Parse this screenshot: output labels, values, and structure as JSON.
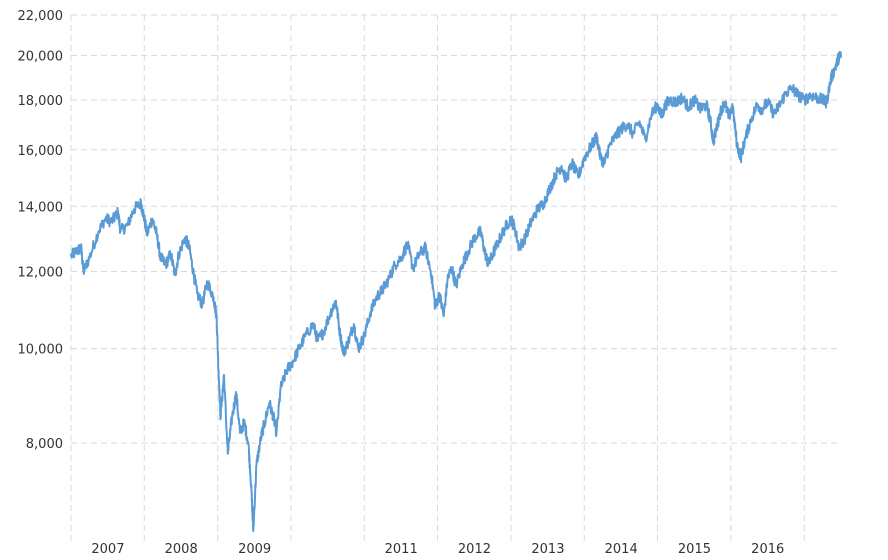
{
  "chart_data": {
    "type": "line",
    "title": "",
    "xlabel": "",
    "ylabel": "",
    "y_scale": "log",
    "ylim": [
      6500,
      22000
    ],
    "xlim": [
      "2006-07-01",
      "2016-12-31"
    ],
    "grid": true,
    "legend": "none",
    "y_ticks": [
      "8,000",
      "10,000",
      "12,000",
      "14,000",
      "16,000",
      "18,000",
      "20,000",
      "22,000"
    ],
    "y_tick_values": [
      8000,
      10000,
      12000,
      14000,
      16000,
      18000,
      20000,
      22000
    ],
    "x_gridlines": [
      "2006-07-01",
      "2007-07-01",
      "2008-07-01",
      "2009-07-01",
      "2010-07-01",
      "2011-07-01",
      "2012-07-01",
      "2013-07-01",
      "2014-07-01",
      "2015-07-01",
      "2016-07-01"
    ],
    "x_ticks": [
      {
        "label": "2007",
        "at": "2007-01-01"
      },
      {
        "label": "2008",
        "at": "2008-01-01"
      },
      {
        "label": "2009",
        "at": "2009-01-01"
      },
      {
        "label": "2011",
        "at": "2011-01-01"
      },
      {
        "label": "2012",
        "at": "2012-01-01"
      },
      {
        "label": "2013",
        "at": "2013-01-01"
      },
      {
        "label": "2014",
        "at": "2014-01-01"
      },
      {
        "label": "2015",
        "at": "2015-01-01"
      },
      {
        "label": "2016",
        "at": "2016-01-01"
      }
    ],
    "series": [
      {
        "color": "#5b9bd5",
        "points": [
          [
            "2006-07-01",
            12450
          ],
          [
            "2006-08-01",
            12600
          ],
          [
            "2006-08-20",
            12700
          ],
          [
            "2006-09-01",
            12000
          ],
          [
            "2006-10-01",
            12400
          ],
          [
            "2006-11-15",
            13200
          ],
          [
            "2006-12-20",
            13600
          ],
          [
            "2007-01-20",
            13500
          ],
          [
            "2007-02-20",
            13800
          ],
          [
            "2007-03-05",
            13200
          ],
          [
            "2007-04-10",
            13400
          ],
          [
            "2007-05-10",
            13900
          ],
          [
            "2007-06-15",
            14100
          ],
          [
            "2007-07-01",
            13600
          ],
          [
            "2007-07-15",
            13100
          ],
          [
            "2007-08-10",
            13600
          ],
          [
            "2007-09-01",
            13100
          ],
          [
            "2007-09-20",
            12400
          ],
          [
            "2007-10-15",
            12200
          ],
          [
            "2007-11-10",
            12500
          ],
          [
            "2007-12-01",
            11900
          ],
          [
            "2007-12-20",
            12500
          ],
          [
            "2008-01-20",
            13000
          ],
          [
            "2008-02-10",
            12700
          ],
          [
            "2008-03-01",
            12000
          ],
          [
            "2008-03-20",
            11400
          ],
          [
            "2008-04-15",
            11100
          ],
          [
            "2008-05-10",
            11700
          ],
          [
            "2008-06-10",
            11300
          ],
          [
            "2008-06-25",
            10800
          ],
          [
            "2008-07-05",
            9500
          ],
          [
            "2008-07-15",
            8500
          ],
          [
            "2008-08-01",
            9400
          ],
          [
            "2008-08-20",
            7800
          ],
          [
            "2008-09-10",
            8500
          ],
          [
            "2008-10-01",
            9000
          ],
          [
            "2008-10-20",
            8200
          ],
          [
            "2008-11-10",
            8400
          ],
          [
            "2008-12-01",
            8000
          ],
          [
            "2008-12-15",
            7200
          ],
          [
            "2008-12-25",
            6500
          ],
          [
            "2009-01-10",
            7600
          ],
          [
            "2009-02-01",
            8100
          ],
          [
            "2009-02-20",
            8400
          ],
          [
            "2009-03-15",
            8800
          ],
          [
            "2009-04-05",
            8500
          ],
          [
            "2009-04-20",
            8200
          ],
          [
            "2009-05-10",
            9100
          ],
          [
            "2009-06-10",
            9500
          ],
          [
            "2009-07-10",
            9700
          ],
          [
            "2009-08-10",
            10000
          ],
          [
            "2009-09-10",
            10300
          ],
          [
            "2009-10-20",
            10600
          ],
          [
            "2009-11-10",
            10200
          ],
          [
            "2009-12-10",
            10400
          ],
          [
            "2010-01-15",
            10900
          ],
          [
            "2010-02-10",
            11200
          ],
          [
            "2010-03-01",
            10400
          ],
          [
            "2010-03-20",
            9900
          ],
          [
            "2010-04-15",
            10200
          ],
          [
            "2010-05-10",
            10600
          ],
          [
            "2010-06-01",
            10000
          ],
          [
            "2010-07-01",
            10300
          ],
          [
            "2010-08-01",
            10900
          ],
          [
            "2010-09-01",
            11300
          ],
          [
            "2010-10-01",
            11500
          ],
          [
            "2010-11-01",
            11800
          ],
          [
            "2010-12-01",
            12200
          ],
          [
            "2011-01-01",
            12400
          ],
          [
            "2011-02-01",
            12800
          ],
          [
            "2011-03-01",
            12100
          ],
          [
            "2011-04-01",
            12500
          ],
          [
            "2011-05-01",
            12700
          ],
          [
            "2011-06-01",
            11900
          ],
          [
            "2011-06-20",
            11000
          ],
          [
            "2011-07-10",
            11400
          ],
          [
            "2011-08-01",
            10800
          ],
          [
            "2011-08-20",
            11800
          ],
          [
            "2011-09-10",
            12100
          ],
          [
            "2011-10-01",
            11600
          ],
          [
            "2011-11-01",
            12200
          ],
          [
            "2011-12-01",
            12600
          ],
          [
            "2012-01-01",
            13000
          ],
          [
            "2012-02-01",
            13200
          ],
          [
            "2012-02-20",
            12600
          ],
          [
            "2012-03-10",
            12200
          ],
          [
            "2012-04-01",
            12500
          ],
          [
            "2012-05-01",
            12900
          ],
          [
            "2012-06-01",
            13300
          ],
          [
            "2012-07-01",
            13600
          ],
          [
            "2012-07-20",
            13300
          ],
          [
            "2012-08-10",
            12700
          ],
          [
            "2012-09-10",
            13000
          ],
          [
            "2012-10-10",
            13500
          ],
          [
            "2012-11-10",
            13900
          ],
          [
            "2012-12-10",
            14100
          ],
          [
            "2013-01-10",
            14600
          ],
          [
            "2013-02-10",
            15100
          ],
          [
            "2013-03-10",
            15400
          ],
          [
            "2013-04-01",
            14900
          ],
          [
            "2013-05-01",
            15500
          ],
          [
            "2013-06-01",
            15000
          ],
          [
            "2013-07-01",
            15700
          ],
          [
            "2013-08-01",
            16100
          ],
          [
            "2013-09-01",
            16500
          ],
          [
            "2013-09-20",
            15700
          ],
          [
            "2013-10-10",
            15500
          ],
          [
            "2013-11-01",
            16100
          ],
          [
            "2013-12-01",
            16500
          ],
          [
            "2014-01-01",
            16800
          ],
          [
            "2014-02-01",
            17000
          ],
          [
            "2014-03-01",
            16600
          ],
          [
            "2014-04-01",
            17100
          ],
          [
            "2014-05-01",
            16400
          ],
          [
            "2014-06-01",
            17400
          ],
          [
            "2014-07-01",
            17800
          ],
          [
            "2014-07-20",
            17300
          ],
          [
            "2014-08-10",
            17800
          ],
          [
            "2014-09-01",
            18000
          ],
          [
            "2014-10-01",
            17900
          ],
          [
            "2014-11-01",
            18100
          ],
          [
            "2014-12-01",
            17700
          ],
          [
            "2015-01-01",
            18000
          ],
          [
            "2015-02-01",
            17600
          ],
          [
            "2015-03-01",
            17800
          ],
          [
            "2015-03-20",
            17200
          ],
          [
            "2015-04-05",
            16300
          ],
          [
            "2015-04-20",
            16800
          ],
          [
            "2015-05-10",
            17500
          ],
          [
            "2015-06-01",
            17900
          ],
          [
            "2015-06-20",
            17300
          ],
          [
            "2015-07-10",
            17700
          ],
          [
            "2015-08-01",
            16200
          ],
          [
            "2015-08-20",
            15700
          ],
          [
            "2015-09-10",
            16400
          ],
          [
            "2015-10-10",
            17200
          ],
          [
            "2015-11-10",
            17800
          ],
          [
            "2015-12-01",
            17600
          ],
          [
            "2016-01-01",
            17900
          ],
          [
            "2016-02-01",
            17400
          ],
          [
            "2016-03-01",
            17800
          ],
          [
            "2016-04-01",
            18300
          ],
          [
            "2016-05-01",
            18500
          ],
          [
            "2016-06-01",
            18200
          ],
          [
            "2016-07-01",
            18000
          ],
          [
            "2016-08-01",
            18200
          ],
          [
            "2016-09-01",
            18100
          ],
          [
            "2016-10-01",
            18000
          ],
          [
            "2016-10-20",
            17900
          ],
          [
            "2016-11-10",
            18900
          ],
          [
            "2016-12-01",
            19400
          ],
          [
            "2016-12-20",
            19900
          ],
          [
            "2016-12-31",
            20000
          ]
        ]
      }
    ]
  }
}
